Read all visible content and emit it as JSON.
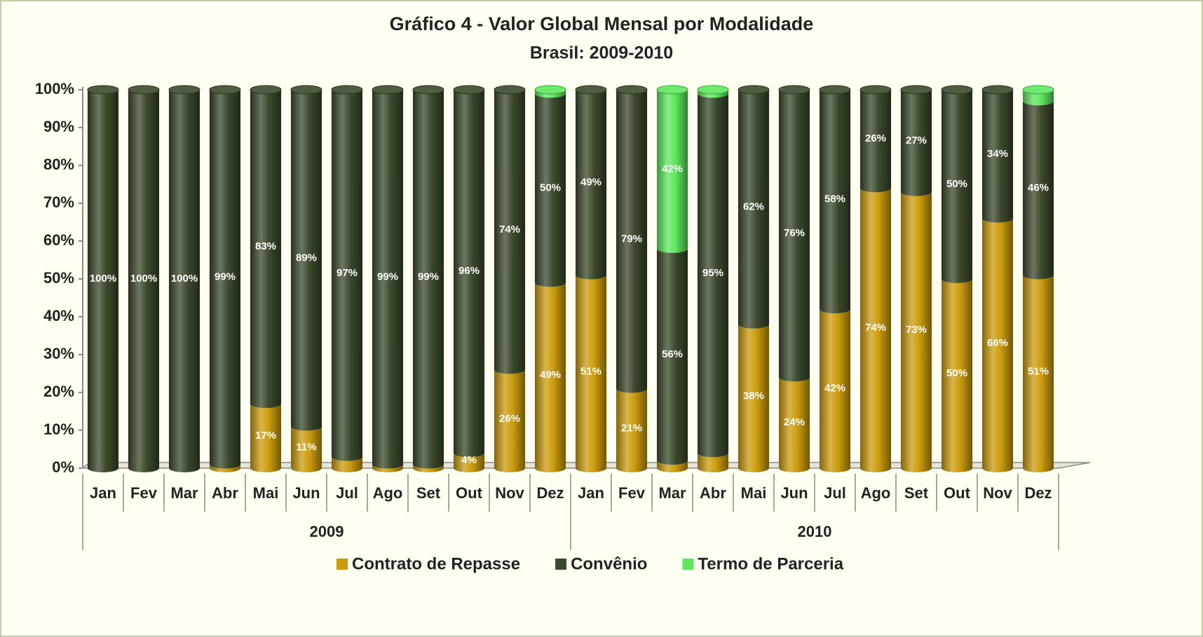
{
  "chart_data": {
    "type": "stacked_bar_100",
    "title": "Gráfico 4 - Valor Global Mensal por Modalidade",
    "subtitle": "Brasil: 2009-2010",
    "categories": [
      "Jan",
      "Fev",
      "Mar",
      "Abr",
      "Mai",
      "Jun",
      "Jul",
      "Ago",
      "Set",
      "Out",
      "Nov",
      "Dez",
      "Jan",
      "Fev",
      "Mar",
      "Abr",
      "Mai",
      "Jun",
      "Jul",
      "Ago",
      "Set",
      "Out",
      "Nov",
      "Dez"
    ],
    "category_groups": [
      "2009",
      "2010"
    ],
    "series": [
      {
        "name": "Contrato de Repasse",
        "color": "#cc9c0e",
        "values": [
          0,
          0,
          0,
          1,
          17,
          11,
          3,
          1,
          1,
          4,
          26,
          49,
          51,
          21,
          2,
          4,
          38,
          24,
          42,
          74,
          73,
          50,
          66,
          51
        ],
        "value_labels": [
          null,
          null,
          null,
          null,
          "17%",
          "11%",
          null,
          null,
          null,
          "4%",
          "26%",
          "49%",
          "51%",
          "21%",
          null,
          null,
          "38%",
          "24%",
          "42%",
          "74%",
          "73%",
          "50%",
          "66%",
          "51%"
        ]
      },
      {
        "name": "Convênio",
        "color": "#3b4a2c",
        "values": [
          100,
          100,
          100,
          99,
          83,
          89,
          97,
          99,
          99,
          96,
          74,
          50,
          49,
          79,
          56,
          95,
          62,
          76,
          58,
          26,
          27,
          50,
          34,
          46
        ],
        "value_labels": [
          "100%",
          "100%",
          "100%",
          "99%",
          "83%",
          "89%",
          "97%",
          "99%",
          "99%",
          "96%",
          "74%",
          "50%",
          "49%",
          "79%",
          "56%",
          "95%",
          "62%",
          "76%",
          "58%",
          "26%",
          "27%",
          "50%",
          "34%",
          "46%"
        ]
      },
      {
        "name": "Termo de Parceria",
        "color": "#5ee85e",
        "values": [
          0,
          0,
          0,
          0,
          0,
          0,
          0,
          0,
          0,
          0,
          0,
          1,
          0,
          0,
          42,
          1,
          0,
          0,
          0,
          0,
          0,
          0,
          0,
          3
        ],
        "value_labels": [
          null,
          null,
          null,
          null,
          null,
          null,
          null,
          null,
          null,
          null,
          null,
          null,
          null,
          null,
          "42%",
          null,
          null,
          null,
          null,
          null,
          null,
          null,
          null,
          null
        ]
      }
    ],
    "ylim": [
      0,
      100
    ],
    "yticks": [
      {
        "value": 0,
        "label": "0%"
      },
      {
        "value": 10,
        "label": "10%"
      },
      {
        "value": 20,
        "label": "20%"
      },
      {
        "value": 30,
        "label": "30%"
      },
      {
        "value": 40,
        "label": "40%"
      },
      {
        "value": 50,
        "label": "50%"
      },
      {
        "value": 60,
        "label": "60%"
      },
      {
        "value": 70,
        "label": "70%"
      },
      {
        "value": 80,
        "label": "80%"
      },
      {
        "value": 90,
        "label": "90%"
      },
      {
        "value": 100,
        "label": "100%"
      }
    ],
    "grid": false,
    "legend": "bottom"
  }
}
